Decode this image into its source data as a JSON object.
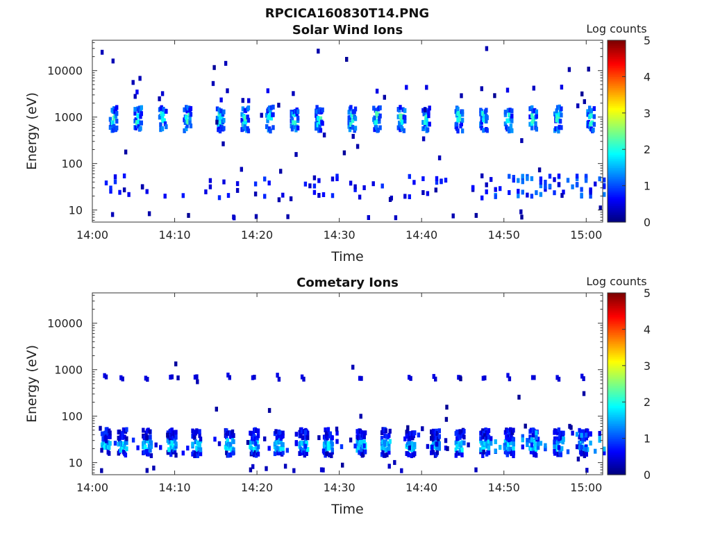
{
  "figure_title": "RPCICA160830T14.PNG",
  "colorbar_label": "Log counts",
  "colors": {
    "axis": "#333333",
    "text": "#222222"
  },
  "chart_data": [
    {
      "type": "heatmap",
      "title": "Solar Wind Ions",
      "xlabel": "Time",
      "ylabel": "Energy (eV)",
      "yscale": "log",
      "ylim": [
        5.5,
        45000
      ],
      "x_range": [
        "14:00",
        "15:02"
      ],
      "x_ticks": [
        "14:00",
        "14:10",
        "14:20",
        "14:30",
        "14:40",
        "14:50",
        "15:00"
      ],
      "y_ticks": [
        "10",
        "100",
        "1000",
        "10000"
      ],
      "colorbar": {
        "label": "Log counts",
        "range": [
          0,
          5
        ],
        "ticks": [
          "0",
          "1",
          "2",
          "3",
          "4",
          "5"
        ],
        "colormap": "jet"
      },
      "main_band": {
        "energy_eV": [
          480,
          1850
        ],
        "peak_log_counts": 2.3,
        "burst_times": [
          "14:02",
          "14:05",
          "14:08",
          "14:11",
          "14:15",
          "14:18",
          "14:21",
          "14:24",
          "14:27",
          "14:31",
          "14:34",
          "14:37",
          "14:40",
          "14:44",
          "14:47",
          "14:50",
          "14:53",
          "14:56",
          "15:00"
        ]
      },
      "low_band": {
        "energy_eV": [
          18,
          55
        ],
        "peak_log_counts": 1.2,
        "enhanced_after": "14:48"
      }
    },
    {
      "type": "heatmap",
      "title": "Cometary Ions",
      "xlabel": "Time",
      "ylabel": "Energy (eV)",
      "yscale": "log",
      "ylim": [
        5.5,
        45000
      ],
      "x_range": [
        "14:00",
        "15:02"
      ],
      "x_ticks": [
        "14:00",
        "14:10",
        "14:20",
        "14:30",
        "14:40",
        "14:50",
        "15:00"
      ],
      "y_ticks": [
        "10",
        "100",
        "1000",
        "10000"
      ],
      "colorbar": {
        "label": "Log counts",
        "range": [
          0,
          5
        ],
        "ticks": [
          "0",
          "1",
          "2",
          "3",
          "4",
          "5"
        ],
        "colormap": "jet"
      },
      "main_band": {
        "energy_eV": [
          14,
          55
        ],
        "peak_log_counts": 1.9,
        "burst_times": [
          "14:01",
          "14:03",
          "14:06",
          "14:09",
          "14:12",
          "14:16",
          "14:19",
          "14:22",
          "14:25",
          "14:28",
          "14:32",
          "14:35",
          "14:38",
          "14:41",
          "14:44",
          "14:47",
          "14:50",
          "14:53",
          "14:56",
          "14:59"
        ]
      },
      "upper_band": {
        "energy_eV": [
          600,
          800
        ],
        "peak_log_counts": 0.6
      }
    }
  ]
}
